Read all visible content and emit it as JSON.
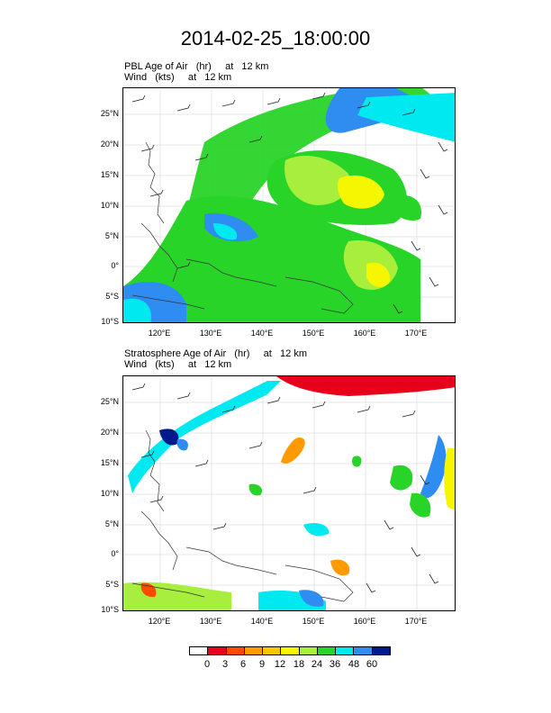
{
  "title": "2014-02-25_18:00:00",
  "panels": [
    {
      "line1": "PBL Age of Air   (hr)     at   12 km",
      "line2": "Wind   (kts)     at   12 km"
    },
    {
      "line1": "Stratosphere Age of Air   (hr)     at   12 km",
      "line2": "Wind   (kts)     at   12 km"
    }
  ],
  "lat_ticks": [
    "25°N",
    "20°N",
    "15°N",
    "10°N",
    "5°N",
    "0°",
    "5°S",
    "10°S"
  ],
  "lon_ticks": [
    "120°E",
    "130°E",
    "140°E",
    "150°E",
    "160°E",
    "170°E"
  ],
  "colorbar": {
    "labels": [
      "0",
      "3",
      "6",
      "9",
      "12",
      "18",
      "24",
      "36",
      "48",
      "60"
    ],
    "colors": [
      "#ffffff",
      "#e8001b",
      "#ff4a00",
      "#ff9a00",
      "#ffc400",
      "#f6f600",
      "#a8ee3c",
      "#28d428",
      "#00e8f0",
      "#2f8cf0",
      "#001a8c"
    ]
  }
}
